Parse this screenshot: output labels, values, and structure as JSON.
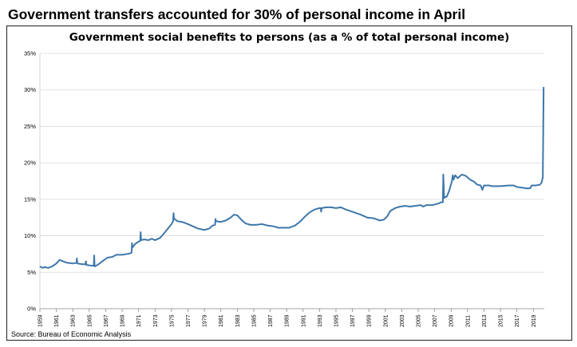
{
  "headline": "Government transfers accounted for 30% of personal income in April",
  "source": "Source: Bureau of Economic Analysis",
  "chart_data": {
    "type": "line",
    "title": "Government social benefits to persons (as a % of total personal income)",
    "xlabel": "",
    "ylabel": "",
    "ylim": [
      0,
      35
    ],
    "xlim": [
      1959,
      2020.33
    ],
    "y_ticks": [
      0,
      5,
      10,
      15,
      20,
      25,
      30,
      35
    ],
    "y_tick_labels": [
      "0%",
      "5%",
      "10%",
      "15%",
      "20%",
      "25%",
      "30%",
      "35%"
    ],
    "x_ticks": [
      1959,
      1961,
      1963,
      1965,
      1967,
      1969,
      1971,
      1973,
      1975,
      1977,
      1979,
      1981,
      1983,
      1985,
      1987,
      1989,
      1991,
      1993,
      1995,
      1997,
      1999,
      2001,
      2003,
      2005,
      2007,
      2009,
      2011,
      2013,
      2015,
      2017,
      2019
    ],
    "x_tick_labels": [
      "1959",
      "1961",
      "1963",
      "1965",
      "1967",
      "1969",
      "1971",
      "1973",
      "1975",
      "1977",
      "1979",
      "1981",
      "1983",
      "1985",
      "1987",
      "1989",
      "1991",
      "1993",
      "1995",
      "1997",
      "1999",
      "2001",
      "2003",
      "2005",
      "2007",
      "2009",
      "2011",
      "2013",
      "2015",
      "2017",
      "2019"
    ],
    "grid": "horizontal",
    "line_color": "#3d77ab",
    "series": [
      {
        "values": [
          [
            1959.0,
            5.8
          ],
          [
            1959.3,
            5.6
          ],
          [
            1959.6,
            5.7
          ],
          [
            1960.0,
            5.6
          ],
          [
            1960.5,
            5.8
          ],
          [
            1961.0,
            6.2
          ],
          [
            1961.4,
            6.7
          ],
          [
            1961.8,
            6.5
          ],
          [
            1962.3,
            6.3
          ],
          [
            1963.0,
            6.2
          ],
          [
            1963.45,
            6.3
          ],
          [
            1963.5,
            6.9
          ],
          [
            1963.55,
            6.2
          ],
          [
            1964.2,
            6.1
          ],
          [
            1964.55,
            6.1
          ],
          [
            1964.6,
            6.5
          ],
          [
            1964.65,
            6.0
          ],
          [
            1965.3,
            5.9
          ],
          [
            1965.55,
            5.9
          ],
          [
            1965.6,
            7.3
          ],
          [
            1965.65,
            5.8
          ],
          [
            1966.0,
            6.0
          ],
          [
            1966.6,
            6.5
          ],
          [
            1967.2,
            7.0
          ],
          [
            1967.8,
            7.1
          ],
          [
            1968.3,
            7.4
          ],
          [
            1969.0,
            7.4
          ],
          [
            1969.6,
            7.5
          ],
          [
            1970.0,
            7.6
          ],
          [
            1970.15,
            7.7
          ],
          [
            1970.2,
            9.0
          ],
          [
            1970.25,
            8.4
          ],
          [
            1970.6,
            8.9
          ],
          [
            1971.0,
            9.2
          ],
          [
            1971.2,
            9.3
          ],
          [
            1971.25,
            10.5
          ],
          [
            1971.3,
            9.4
          ],
          [
            1971.7,
            9.5
          ],
          [
            1972.2,
            9.4
          ],
          [
            1972.6,
            9.6
          ],
          [
            1973.0,
            9.4
          ],
          [
            1973.6,
            9.7
          ],
          [
            1974.0,
            10.2
          ],
          [
            1974.5,
            10.9
          ],
          [
            1975.0,
            11.6
          ],
          [
            1975.2,
            12.0
          ],
          [
            1975.25,
            13.1
          ],
          [
            1975.3,
            12.4
          ],
          [
            1975.7,
            12.0
          ],
          [
            1976.3,
            11.9
          ],
          [
            1977.0,
            11.6
          ],
          [
            1977.6,
            11.3
          ],
          [
            1978.2,
            11.0
          ],
          [
            1979.0,
            10.8
          ],
          [
            1979.6,
            11.0
          ],
          [
            1980.0,
            11.4
          ],
          [
            1980.3,
            11.5
          ],
          [
            1980.35,
            12.3
          ],
          [
            1980.4,
            12.0
          ],
          [
            1981.0,
            11.9
          ],
          [
            1981.6,
            12.1
          ],
          [
            1982.2,
            12.5
          ],
          [
            1982.6,
            12.9
          ],
          [
            1983.0,
            12.8
          ],
          [
            1983.5,
            12.2
          ],
          [
            1984.0,
            11.7
          ],
          [
            1984.6,
            11.5
          ],
          [
            1985.3,
            11.5
          ],
          [
            1986.0,
            11.6
          ],
          [
            1986.7,
            11.4
          ],
          [
            1987.4,
            11.3
          ],
          [
            1988.0,
            11.1
          ],
          [
            1988.7,
            11.1
          ],
          [
            1989.3,
            11.1
          ],
          [
            1990.0,
            11.4
          ],
          [
            1990.6,
            11.9
          ],
          [
            1991.2,
            12.6
          ],
          [
            1991.8,
            13.2
          ],
          [
            1992.4,
            13.6
          ],
          [
            1993.0,
            13.8
          ],
          [
            1993.15,
            13.8
          ],
          [
            1993.2,
            13.3
          ],
          [
            1993.25,
            13.8
          ],
          [
            1993.8,
            13.9
          ],
          [
            1994.4,
            13.9
          ],
          [
            1995.0,
            13.8
          ],
          [
            1995.6,
            13.9
          ],
          [
            1996.2,
            13.6
          ],
          [
            1997.0,
            13.3
          ],
          [
            1998.0,
            12.9
          ],
          [
            1998.8,
            12.5
          ],
          [
            1999.6,
            12.4
          ],
          [
            2000.3,
            12.1
          ],
          [
            2000.8,
            12.2
          ],
          [
            2001.2,
            12.6
          ],
          [
            2001.6,
            13.4
          ],
          [
            2002.2,
            13.8
          ],
          [
            2002.8,
            14.0
          ],
          [
            2003.4,
            14.1
          ],
          [
            2004.0,
            14.0
          ],
          [
            2004.6,
            14.1
          ],
          [
            2005.3,
            14.2
          ],
          [
            2005.6,
            14.0
          ],
          [
            2006.0,
            14.2
          ],
          [
            2006.7,
            14.2
          ],
          [
            2007.4,
            14.4
          ],
          [
            2007.8,
            14.6
          ],
          [
            2008.0,
            14.6
          ],
          [
            2008.05,
            18.4
          ],
          [
            2008.15,
            15.2
          ],
          [
            2008.5,
            15.4
          ],
          [
            2008.8,
            16.3
          ],
          [
            2009.1,
            17.5
          ],
          [
            2009.2,
            18.3
          ],
          [
            2009.3,
            17.7
          ],
          [
            2009.5,
            18.3
          ],
          [
            2009.8,
            17.9
          ],
          [
            2010.3,
            18.4
          ],
          [
            2010.8,
            18.2
          ],
          [
            2011.3,
            17.7
          ],
          [
            2011.8,
            17.4
          ],
          [
            2012.2,
            17.0
          ],
          [
            2012.6,
            16.9
          ],
          [
            2012.8,
            16.3
          ],
          [
            2013.0,
            16.9
          ],
          [
            2013.6,
            16.9
          ],
          [
            2014.0,
            16.8
          ],
          [
            2015.0,
            16.8
          ],
          [
            2016.0,
            16.9
          ],
          [
            2016.6,
            16.9
          ],
          [
            2017.0,
            16.7
          ],
          [
            2017.6,
            16.6
          ],
          [
            2018.2,
            16.5
          ],
          [
            2018.6,
            16.5
          ],
          [
            2018.8,
            16.9
          ],
          [
            2019.3,
            16.9
          ],
          [
            2019.8,
            17.0
          ],
          [
            2020.0,
            17.3
          ],
          [
            2020.15,
            18.0
          ],
          [
            2020.25,
            30.4
          ]
        ]
      }
    ]
  }
}
